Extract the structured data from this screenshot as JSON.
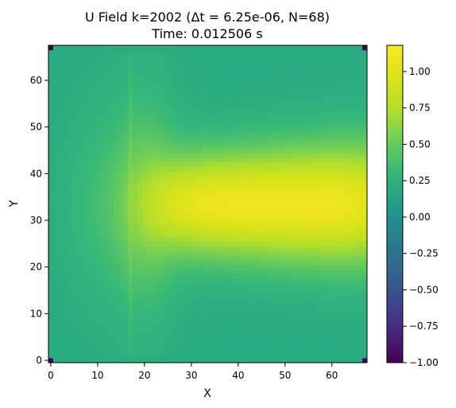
{
  "chart_data": {
    "type": "heatmap",
    "title_line1": "U Field k=2002 (Δt = 6.25e-06, N=68)",
    "title_line2": "Time: 0.012506 s",
    "xlabel": "X",
    "ylabel": "Y",
    "grid_size": 68,
    "xlim": [
      -0.5,
      67.5
    ],
    "ylim": [
      -0.5,
      67.5
    ],
    "x_ticks": [
      0,
      10,
      20,
      30,
      40,
      50,
      60
    ],
    "y_ticks": [
      0,
      10,
      20,
      30,
      40,
      50,
      60
    ],
    "x_tick_labels": [
      "0",
      "10",
      "20",
      "30",
      "40",
      "50",
      "60"
    ],
    "y_tick_labels": [
      "0",
      "10",
      "20",
      "30",
      "40",
      "50",
      "60"
    ],
    "colormap": "viridis",
    "vmin": -1.0,
    "vmax": 1.18,
    "colorbar_ticks": [
      -1.0,
      -0.75,
      -0.5,
      -0.25,
      0.0,
      0.25,
      0.5,
      0.75,
      1.0
    ],
    "colorbar_tick_labels": [
      "−1.00",
      "−0.75",
      "−0.50",
      "−0.25",
      "0.00",
      "0.25",
      "0.50",
      "0.75",
      "1.00"
    ],
    "field_features": {
      "background_value": 0.2,
      "jet_center_y": 33.5,
      "jet_peak_value": 1.1,
      "jet_peak_x": 46,
      "corner_value": -1.0
    },
    "grid": false
  }
}
